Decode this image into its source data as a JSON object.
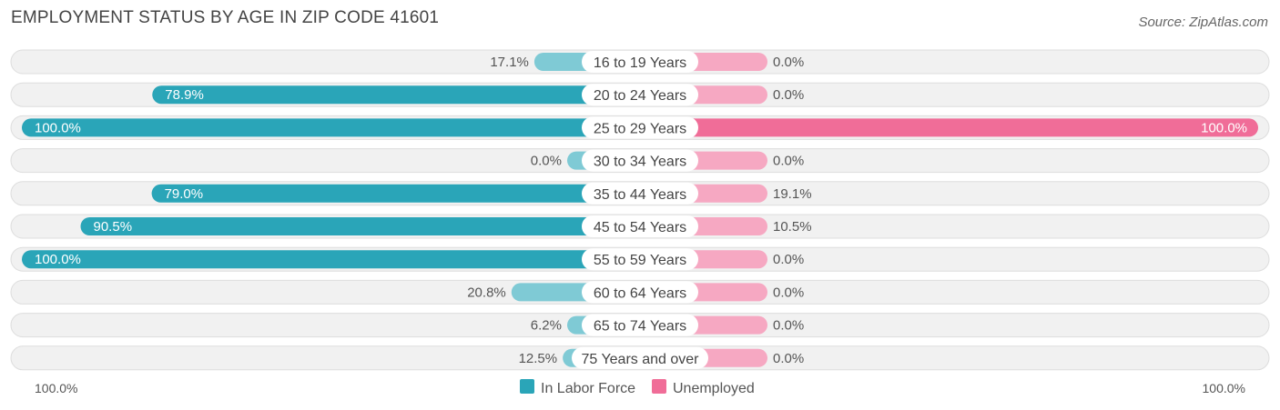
{
  "chart_data": {
    "type": "bar",
    "title": "EMPLOYMENT STATUS BY AGE IN ZIP CODE 41601",
    "source": "Source: ZipAtlas.com",
    "categories": [
      "16 to 19 Years",
      "20 to 24 Years",
      "25 to 29 Years",
      "30 to 34 Years",
      "35 to 44 Years",
      "45 to 54 Years",
      "55 to 59 Years",
      "60 to 64 Years",
      "65 to 74 Years",
      "75 Years and over"
    ],
    "series": [
      {
        "name": "In Labor Force",
        "color": "#2aa5b8",
        "light_color": "#7fcad5",
        "values": [
          17.1,
          78.9,
          100.0,
          0.0,
          79.0,
          90.5,
          100.0,
          20.8,
          6.2,
          12.5
        ],
        "labels": [
          "17.1%",
          "78.9%",
          "100.0%",
          "0.0%",
          "79.0%",
          "90.5%",
          "100.0%",
          "20.8%",
          "6.2%",
          "12.5%"
        ]
      },
      {
        "name": "Unemployed",
        "color": "#f06d98",
        "light_color": "#f6a8c2",
        "values": [
          0.0,
          0.0,
          100.0,
          0.0,
          19.1,
          10.5,
          0.0,
          0.0,
          0.0,
          0.0
        ],
        "labels": [
          "0.0%",
          "0.0%",
          "100.0%",
          "0.0%",
          "19.1%",
          "10.5%",
          "0.0%",
          "0.0%",
          "0.0%",
          "0.0%"
        ]
      }
    ],
    "axis": {
      "left_label": "100.0%",
      "right_label": "100.0%",
      "max": 100
    },
    "legend_position": "bottom-center"
  }
}
